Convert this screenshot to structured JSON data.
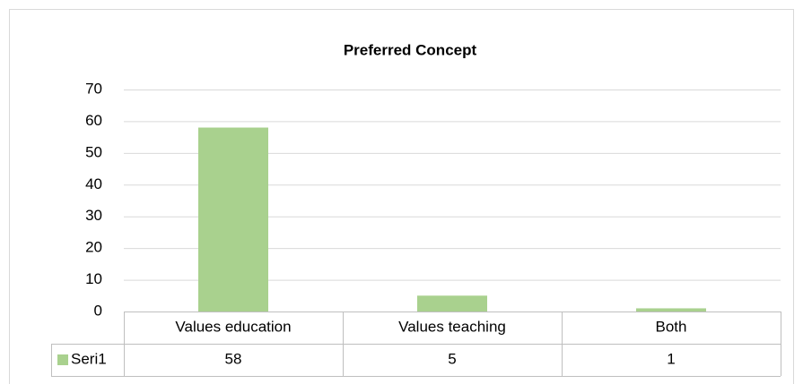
{
  "chart_data": {
    "type": "bar",
    "title": "Preferred Concept",
    "categories": [
      "Values education",
      "Values teaching",
      "Both"
    ],
    "series": [
      {
        "name": "Seri1",
        "color": "#a9d18e",
        "values": [
          58,
          5,
          1
        ]
      }
    ],
    "ylim": [
      0,
      70
    ],
    "yticks": [
      0,
      10,
      20,
      30,
      40,
      50,
      60,
      70
    ],
    "grid": true,
    "data_table": true
  }
}
